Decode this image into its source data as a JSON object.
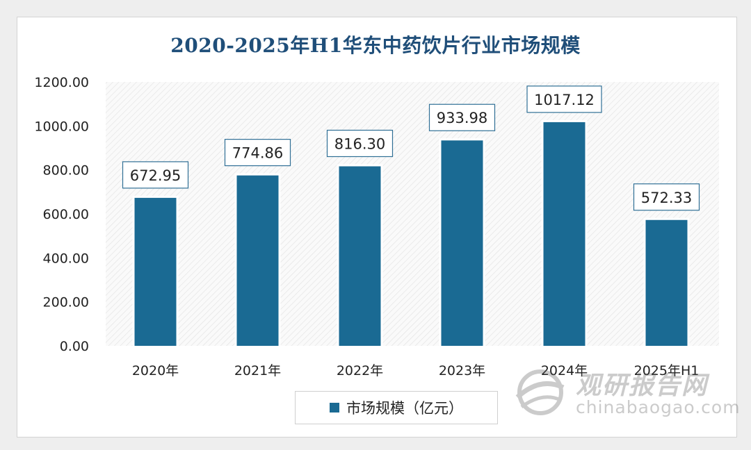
{
  "chart_data": {
    "type": "bar",
    "title": "2020-2025年H1华东中药饮片行业市场规模",
    "categories": [
      "2020年",
      "2021年",
      "2022年",
      "2023年",
      "2024年",
      "2025年H1"
    ],
    "series": [
      {
        "name": "市场规模（亿元）",
        "values": [
          672.95,
          774.86,
          816.3,
          933.98,
          1017.12,
          572.33
        ]
      }
    ],
    "value_labels": [
      "672.95",
      "774.86",
      "816.30",
      "933.98",
      "1017.12",
      "572.33"
    ],
    "y_ticks": [
      "0.00",
      "200.00",
      "400.00",
      "600.00",
      "800.00",
      "1000.00",
      "1200.00"
    ],
    "ylim": [
      0,
      1200
    ],
    "xlabel": "",
    "ylabel": "",
    "grid": false,
    "legend_position": "bottom",
    "bar_color": "#1a6a93"
  },
  "watermark": {
    "cn": "观研报告网",
    "en": "chinabaogao.com",
    "icon": "globe-logo-icon"
  }
}
